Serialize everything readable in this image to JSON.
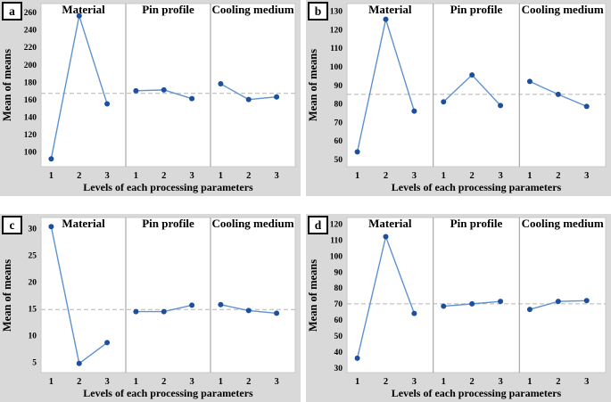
{
  "figure": {
    "xlabel": "Levels of each processing parameters",
    "ylabel": "Mean of means",
    "group_titles": [
      "Material",
      "Pin profile",
      "Cooling medium"
    ],
    "x_levels": [
      "1",
      "2",
      "3"
    ]
  },
  "colors": {
    "panel_background": "#d9d9d9",
    "plot_background": "#ffffff",
    "plot_border": "#c9c9c9",
    "separator": "#a8a8a8",
    "mean_dash": "#b5b5b5",
    "line": "#5e92d2",
    "marker": "#1d4fa1",
    "text": "#000000"
  },
  "chart_data": [
    {
      "panel": "a",
      "type": "line",
      "xlabel": "Levels of each processing parameters",
      "ylabel": "Mean of means",
      "x": [
        1,
        2,
        3
      ],
      "yticks": [
        100,
        120,
        140,
        160,
        180,
        200,
        220,
        240,
        260
      ],
      "ylim": [
        83,
        270
      ],
      "mean_line": 167,
      "series": [
        {
          "name": "Material",
          "values": [
            92,
            256,
            155
          ]
        },
        {
          "name": "Pin profile",
          "values": [
            170,
            171,
            161
          ]
        },
        {
          "name": "Cooling medium",
          "values": [
            178,
            160,
            163
          ]
        }
      ]
    },
    {
      "panel": "b",
      "type": "line",
      "xlabel": "Levels of each processing parameters",
      "ylabel": "Mean of means",
      "x": [
        1,
        2,
        3
      ],
      "yticks": [
        50,
        60,
        70,
        80,
        90,
        100,
        110,
        120,
        130
      ],
      "ylim": [
        46,
        134
      ],
      "mean_line": 85,
      "series": [
        {
          "name": "Material",
          "values": [
            54,
            125.5,
            76
          ]
        },
        {
          "name": "Pin profile",
          "values": [
            81,
            95.5,
            79
          ]
        },
        {
          "name": "Cooling medium",
          "values": [
            92,
            85,
            78.5
          ]
        }
      ]
    },
    {
      "panel": "c",
      "type": "line",
      "xlabel": "Levels of each processing parameters",
      "ylabel": "Mean of means",
      "x": [
        1,
        2,
        3
      ],
      "yticks": [
        5,
        10,
        15,
        20,
        25,
        30
      ],
      "ylim": [
        3,
        32
      ],
      "mean_line": 14.8,
      "series": [
        {
          "name": "Material",
          "values": [
            30.3,
            4.7,
            8.6
          ]
        },
        {
          "name": "Pin profile",
          "values": [
            14.4,
            14.4,
            15.6
          ]
        },
        {
          "name": "Cooling medium",
          "values": [
            15.7,
            14.6,
            14.1
          ]
        }
      ]
    },
    {
      "panel": "d",
      "type": "line",
      "xlabel": "Levels of each processing parameters",
      "ylabel": "Mean of means",
      "x": [
        1,
        2,
        3
      ],
      "yticks": [
        30,
        40,
        50,
        60,
        70,
        80,
        90,
        100,
        110,
        120
      ],
      "ylim": [
        27,
        124
      ],
      "mean_line": 70,
      "series": [
        {
          "name": "Material",
          "values": [
            36,
            112,
            64
          ]
        },
        {
          "name": "Pin profile",
          "values": [
            68.5,
            70,
            71.5
          ]
        },
        {
          "name": "Cooling medium",
          "values": [
            66.5,
            71.5,
            72
          ]
        }
      ]
    }
  ]
}
